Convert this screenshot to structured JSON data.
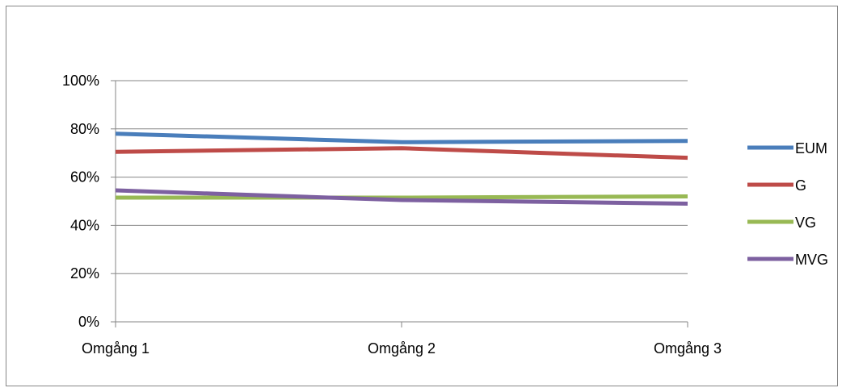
{
  "chart_data": {
    "type": "line",
    "title": "",
    "xlabel": "",
    "ylabel": "",
    "categories": [
      "Omgång 1",
      "Omgång 2",
      "Omgång 3"
    ],
    "y_ticks": [
      "0%",
      "20%",
      "40%",
      "60%",
      "80%",
      "100%"
    ],
    "ylim": [
      0,
      100
    ],
    "y_unit": "%",
    "grid": true,
    "legend_position": "right",
    "series": [
      {
        "name": "EUM",
        "color": "#4A7EBB",
        "values": [
          78,
          74.5,
          75
        ]
      },
      {
        "name": "G",
        "color": "#BE4B48",
        "values": [
          70.5,
          72,
          68
        ]
      },
      {
        "name": "VG",
        "color": "#98B954",
        "values": [
          51.5,
          51.5,
          52
        ]
      },
      {
        "name": "MVG",
        "color": "#7D60A0",
        "values": [
          54.5,
          50.5,
          49
        ]
      }
    ]
  }
}
